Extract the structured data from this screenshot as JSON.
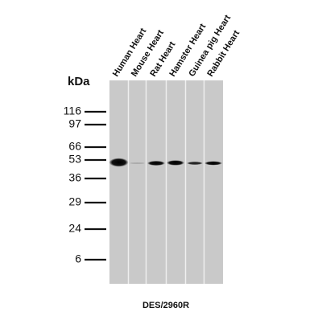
{
  "lanes": [
    "Human Heart",
    "Mouse Heart",
    "Rat Heart",
    "Hamster Heart",
    "Guinea pig Heart",
    "Rabbit Heart"
  ],
  "unit_label": "kDa",
  "markers": [
    "116",
    "97",
    "66",
    "53",
    "36",
    "29",
    "24",
    "6"
  ],
  "caption": "DES/2960R"
}
